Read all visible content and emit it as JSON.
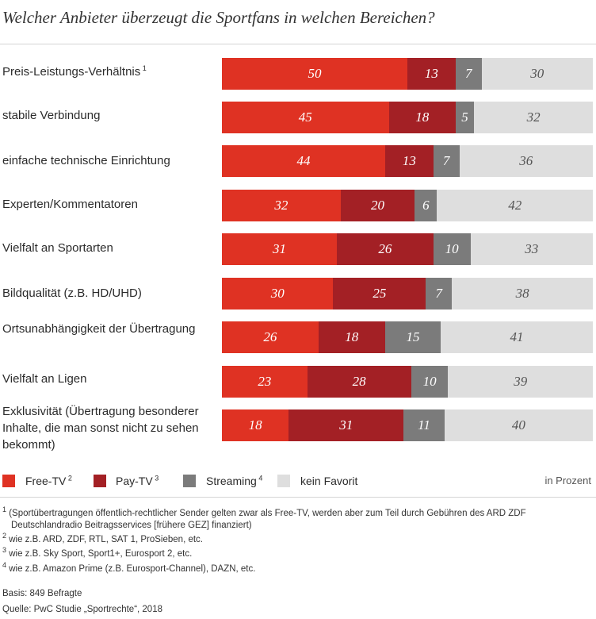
{
  "title": "Welcher Anbieter überzeugt die Sportfans in welchen Bereichen?",
  "colors": {
    "free_tv": "#df3223",
    "pay_tv": "#a32025",
    "streaming": "#7b7b7b",
    "kein_favorit": "#dedede"
  },
  "chart_data": {
    "type": "bar",
    "orientation": "horizontal-stacked",
    "title": "Welcher Anbieter überzeugt die Sportfans in welchen Bereichen?",
    "unit": "in Prozent",
    "xlim": [
      0,
      100
    ],
    "categories": [
      {
        "label": "Preis-Leistungs-Verhältnis",
        "sup": "1"
      },
      {
        "label": "stabile Verbindung",
        "sup": ""
      },
      {
        "label": "einfache technische Einrichtung",
        "sup": ""
      },
      {
        "label": "Experten/Kommentatoren",
        "sup": ""
      },
      {
        "label": "Vielfalt an Sportarten",
        "sup": ""
      },
      {
        "label": "Bildqualität (z.B. HD/UHD)",
        "sup": ""
      },
      {
        "label": "Ortsunabhängigkeit der Übertragung",
        "sup": ""
      },
      {
        "label": "Vielfalt an Ligen",
        "sup": ""
      },
      {
        "label": "Exklusivität (Übertragung besonderer Inhalte, die man sonst nicht zu sehen bekommt)",
        "sup": ""
      }
    ],
    "series": [
      {
        "name": "Free-TV",
        "sup": "2",
        "values": [
          50,
          45,
          44,
          32,
          31,
          30,
          26,
          23,
          18
        ]
      },
      {
        "name": "Pay-TV",
        "sup": "3",
        "values": [
          13,
          18,
          13,
          20,
          26,
          25,
          18,
          28,
          31
        ]
      },
      {
        "name": "Streaming",
        "sup": "4",
        "values": [
          7,
          5,
          7,
          6,
          10,
          7,
          15,
          10,
          11
        ]
      },
      {
        "name": "kein Favorit",
        "sup": "",
        "values": [
          30,
          32,
          36,
          42,
          33,
          38,
          41,
          39,
          40
        ]
      }
    ]
  },
  "legend": {
    "unit_label": "in Prozent"
  },
  "footnotes": [
    {
      "num": "1",
      "lines": [
        "(Sportübertragungen öffentlich-rechtlicher Sender gelten zwar als Free-TV, werden aber zum Teil durch Gebühren des ARD ZDF",
        "Deutschlandradio Beitragsservices [frühere GEZ] finanziert)"
      ]
    },
    {
      "num": "2",
      "lines": [
        "wie z.B. ARD, ZDF, RTL, SAT 1, ProSieben, etc."
      ]
    },
    {
      "num": "3",
      "lines": [
        "wie z.B. Sky Sport, Sport1+, Eurosport 2, etc."
      ]
    },
    {
      "num": "4",
      "lines": [
        "wie z.B. Amazon Prime (z.B. Eurosport-Channel), DAZN, etc."
      ]
    }
  ],
  "basis": "Basis: 849 Befragte",
  "source": "Quelle: PwC Studie „Sportrechte“, 2018"
}
